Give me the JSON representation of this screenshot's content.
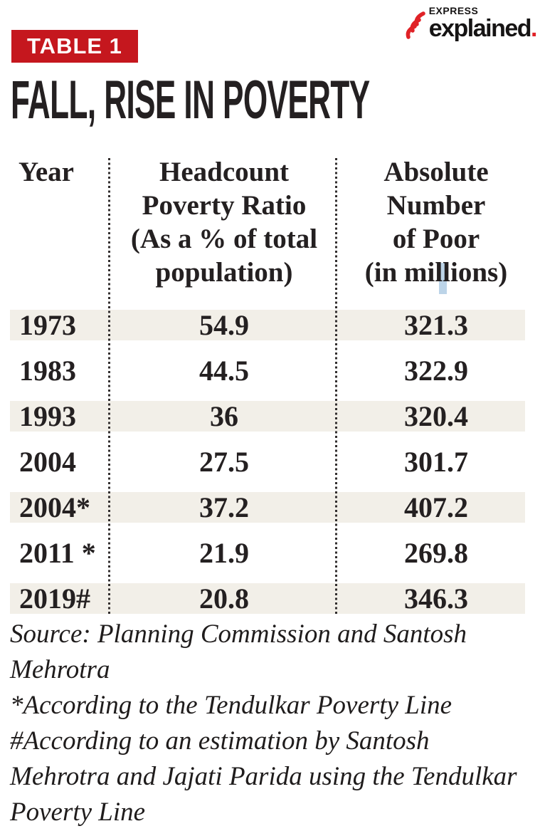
{
  "brand": {
    "express": "EXPRESS",
    "explained": "explained",
    "dot": "."
  },
  "badge": {
    "label": "TABLE 1"
  },
  "title": "FALL, RISE IN POVERTY",
  "table": {
    "header": {
      "year": "Year",
      "ratio": "Headcount\nPoverty Ratio\n(As a % of total\npopulation)",
      "absolute": "Absolute\nNumber\nof Poor\n(in millions)"
    },
    "rows": [
      [
        "1973",
        "54.9",
        "321.3"
      ],
      [
        "1983",
        "44.5",
        "322.9"
      ],
      [
        "1993",
        "36",
        "320.4"
      ],
      [
        "2004",
        "27.5",
        "301.7"
      ],
      [
        "2004*",
        "37.2",
        "407.2"
      ],
      [
        "2011 *",
        "21.9",
        "269.8"
      ],
      [
        "2019#",
        "20.8",
        "346.3"
      ]
    ]
  },
  "notes": [
    "Source: Planning Commission and Santosh\nMehrotra",
    "*According to the Tendulkar Poverty Line",
    "#According to an estimation by Santosh\nMehrotra and Jajati Parida using the Tendulkar\nPoverty Line"
  ],
  "colors": {
    "badge_red": "#c5171e",
    "logo_red": "#e02227",
    "row_shade": "#f2efe8",
    "text": "#242021",
    "highlight_blue": "#a6c6e0"
  },
  "chart_data": {
    "type": "table",
    "title": "FALL, RISE IN POVERTY",
    "columns": [
      "Year",
      "Headcount Poverty Ratio (As a % of total population)",
      "Absolute Number of Poor (in millions)"
    ],
    "rows": [
      [
        "1973",
        54.9,
        321.3
      ],
      [
        "1983",
        44.5,
        322.9
      ],
      [
        "1993",
        36,
        320.4
      ],
      [
        "2004",
        27.5,
        301.7
      ],
      [
        "2004*",
        37.2,
        407.2
      ],
      [
        "2011*",
        21.9,
        269.8
      ],
      [
        "2019#",
        20.8,
        346.3
      ]
    ],
    "notes": [
      "Source: Planning Commission and Santosh Mehrotra",
      "*According to the Tendulkar Poverty Line",
      "#According to an estimation by Santosh Mehrotra and Jajati Parida using the Tendulkar Poverty Line"
    ]
  }
}
